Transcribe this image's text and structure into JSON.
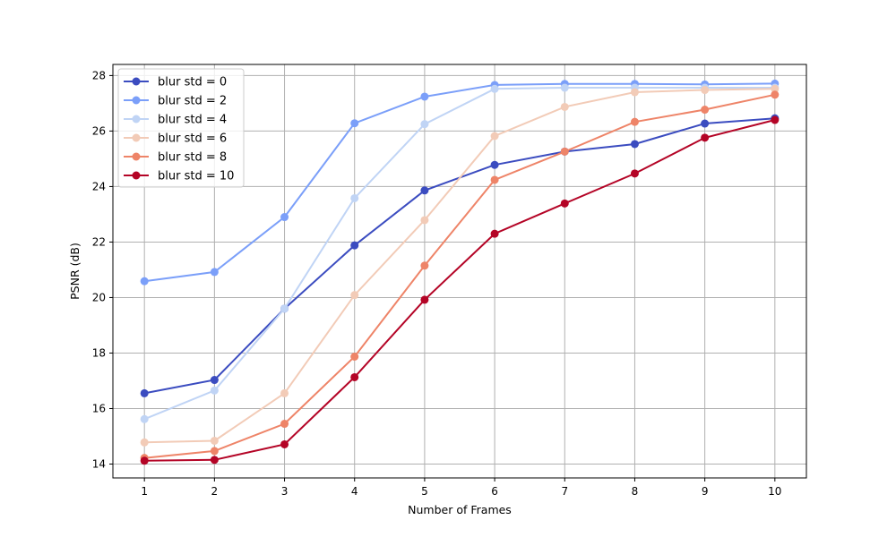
{
  "chart_data": {
    "type": "line",
    "title": "",
    "xlabel": "Number of Frames",
    "ylabel": "PSNR (dB)",
    "x": [
      1,
      2,
      3,
      4,
      5,
      6,
      7,
      8,
      9,
      10
    ],
    "xlim": [
      0.55,
      10.45
    ],
    "ylim": [
      13.5,
      28.4
    ],
    "xticks": [
      1,
      2,
      3,
      4,
      5,
      6,
      7,
      8,
      9,
      10
    ],
    "yticks": [
      14,
      16,
      18,
      20,
      22,
      24,
      26,
      28
    ],
    "grid": true,
    "legend_position": "top-left",
    "series": [
      {
        "name": "blur std = 0",
        "color": "#3b4cc0",
        "values": [
          16.55,
          17.03,
          19.6,
          21.88,
          23.86,
          24.78,
          25.26,
          25.53,
          26.27,
          26.46
        ]
      },
      {
        "name": "blur std = 2",
        "color": "#7b9ff9",
        "values": [
          20.59,
          20.92,
          22.9,
          26.28,
          27.24,
          27.66,
          27.7,
          27.7,
          27.68,
          27.71
        ]
      },
      {
        "name": "blur std = 4",
        "color": "#c0d4f5",
        "values": [
          15.62,
          16.65,
          19.6,
          23.58,
          26.25,
          27.52,
          27.56,
          27.56,
          27.56,
          27.56
        ]
      },
      {
        "name": "blur std = 6",
        "color": "#f2cbb7",
        "values": [
          14.78,
          14.84,
          16.55,
          20.09,
          22.79,
          25.82,
          26.87,
          27.4,
          27.48,
          27.52
        ]
      },
      {
        "name": "blur std = 8",
        "color": "#ee8468",
        "values": [
          14.22,
          14.47,
          15.45,
          17.87,
          21.15,
          24.24,
          25.26,
          26.33,
          26.77,
          27.31
        ]
      },
      {
        "name": "blur std = 10",
        "color": "#b40426",
        "values": [
          14.12,
          14.15,
          14.71,
          17.13,
          19.92,
          22.3,
          23.39,
          24.47,
          25.76,
          26.4
        ]
      }
    ]
  }
}
